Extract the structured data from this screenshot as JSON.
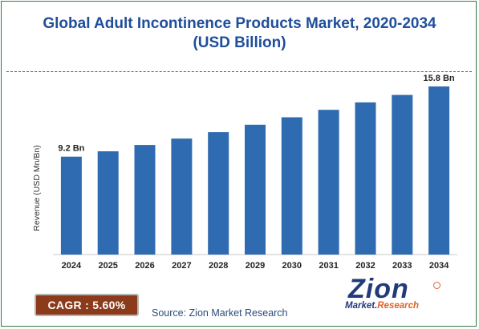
{
  "title_line1": "Global Adult Incontinence Products Market, 2020-2034",
  "title_line2": "(USD Billion)",
  "cagr_label": "CAGR : 5.60%",
  "source": "Source: Zion Market Research",
  "logo": {
    "main": "Zion",
    "sub_part1": "Market.",
    "sub_part2": "Research",
    "accent_color": "#e0632a",
    "brand_color": "#233a7a"
  },
  "colors": {
    "bar": "#2e6bb0",
    "title": "#1f4e9b",
    "cagr_bg": "#8b3a1a",
    "border": "#2f7d3e"
  },
  "chart_data": {
    "type": "bar",
    "title": "Global Adult Incontinence Products Market, 2020-2034 (USD Billion)",
    "xlabel": "",
    "ylabel": "Revenue (USD Mn/Bn)",
    "categories": [
      "2024",
      "2025",
      "2026",
      "2027",
      "2028",
      "2029",
      "2030",
      "2031",
      "2032",
      "2033",
      "2034"
    ],
    "values": [
      9.2,
      9.7,
      10.3,
      10.9,
      11.5,
      12.2,
      12.9,
      13.6,
      14.3,
      15.0,
      15.8
    ],
    "ylim": [
      0,
      17
    ],
    "grid": false,
    "data_labels": [
      {
        "category": "2024",
        "text": "9.2 Bn"
      },
      {
        "category": "2034",
        "text": "15.8 Bn"
      }
    ]
  }
}
